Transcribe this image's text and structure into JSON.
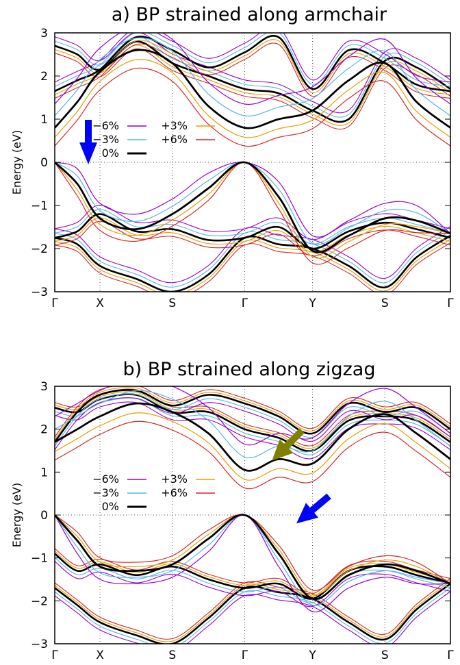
{
  "chart_data": [
    {
      "type": "line",
      "title": "a) BP strained along armchair",
      "xlabel": "",
      "ylabel": "Energy (eV)",
      "ylim": [
        -3,
        3
      ],
      "yticks": [
        "3",
        "2",
        "1",
        "0",
        "−1",
        "−2",
        "−3"
      ],
      "kpath": [
        "Γ",
        "X",
        "S",
        "Γ",
        "Y",
        "S",
        "Γ"
      ],
      "kpos": [
        0,
        0.2,
        0.52,
        0.84,
        1.14,
        1.46,
        1.75
      ],
      "grid": "vertical dotted at high-symmetry points, horizontal dotted at 0",
      "legend": [
        {
          "name": "−6%",
          "color": "#9400d3"
        },
        {
          "name": "−3%",
          "color": "#56b4e9"
        },
        {
          "name": "0%",
          "color": "#000000"
        },
        {
          "name": "+3%",
          "color": "#e69f00"
        },
        {
          "name": "+6%",
          "color": "#d62728"
        }
      ],
      "legend_position": "upper-left",
      "annotations": [
        {
          "kind": "arrow",
          "color": "#0000ff",
          "note": "down arrow above valence band near X"
        }
      ],
      "series": [
        {
          "name": "0%",
          "band": "conduction-band-minimum",
          "x": [
            0,
            0.1,
            0.2,
            0.36,
            0.52,
            0.68,
            0.84,
            0.99,
            1.14,
            1.3,
            1.46,
            1.6,
            1.75
          ],
          "y": [
            0.8,
            1.4,
            2.1,
            2.6,
            2.3,
            1.3,
            0.8,
            1.0,
            1.2,
            1.9,
            2.3,
            1.4,
            0.8
          ]
        },
        {
          "name": "0%",
          "band": "valence-band-maximum",
          "x": [
            0,
            0.1,
            0.2,
            0.36,
            0.52,
            0.68,
            0.84,
            0.99,
            1.14,
            1.3,
            1.46,
            1.6,
            1.75
          ],
          "y": [
            0.0,
            -0.5,
            -1.3,
            -1.55,
            -1.2,
            -0.6,
            0.0,
            -0.8,
            -2.05,
            -1.7,
            -1.3,
            -1.35,
            -1.65
          ]
        }
      ]
    },
    {
      "type": "line",
      "title": "b) BP strained along zigzag",
      "xlabel": "",
      "ylabel": "Energy (eV)",
      "ylim": [
        -3,
        3
      ],
      "yticks": [
        "3",
        "2",
        "1",
        "0",
        "−1",
        "−2",
        "−3"
      ],
      "kpath": [
        "Γ",
        "X",
        "S",
        "Γ",
        "Y",
        "S",
        "Γ"
      ],
      "kpos": [
        0,
        0.2,
        0.52,
        0.84,
        1.14,
        1.46,
        1.75
      ],
      "grid": "vertical dotted at high-symmetry points, horizontal dotted at 0",
      "legend": [
        {
          "name": "−6%",
          "color": "#9400d3"
        },
        {
          "name": "−3%",
          "color": "#56b4e9"
        },
        {
          "name": "0%",
          "color": "#000000"
        },
        {
          "name": "+3%",
          "color": "#e69f00"
        },
        {
          "name": "+6%",
          "color": "#d62728"
        }
      ],
      "legend_position": "center-left",
      "annotations": [
        {
          "kind": "arrow",
          "color": "#808000",
          "note": "olive arrow pointing down-left at conduction band near Gamma"
        },
        {
          "kind": "arrow",
          "color": "#0000ff",
          "note": "blue arrow pointing down-left at valence band between Gamma and Y"
        }
      ],
      "series": [
        {
          "name": "0%",
          "band": "conduction-band-minimum",
          "x": [
            0,
            0.1,
            0.2,
            0.36,
            0.52,
            0.68,
            0.84,
            0.99,
            1.14,
            1.3,
            1.46,
            1.6,
            1.75
          ],
          "y": [
            1.7,
            2.0,
            2.3,
            2.6,
            2.4,
            1.9,
            1.05,
            1.3,
            1.2,
            2.0,
            2.35,
            1.9,
            1.3
          ]
        },
        {
          "name": "0%",
          "band": "valence-band-maximum",
          "x": [
            0,
            0.1,
            0.2,
            0.36,
            0.52,
            0.68,
            0.84,
            0.99,
            1.14,
            1.3,
            1.46,
            1.6,
            1.75
          ],
          "y": [
            0.0,
            -0.6,
            -1.2,
            -1.3,
            -1.15,
            -0.55,
            0.0,
            -0.9,
            -1.95,
            -1.4,
            -1.15,
            -1.3,
            -1.6
          ]
        }
      ]
    }
  ]
}
